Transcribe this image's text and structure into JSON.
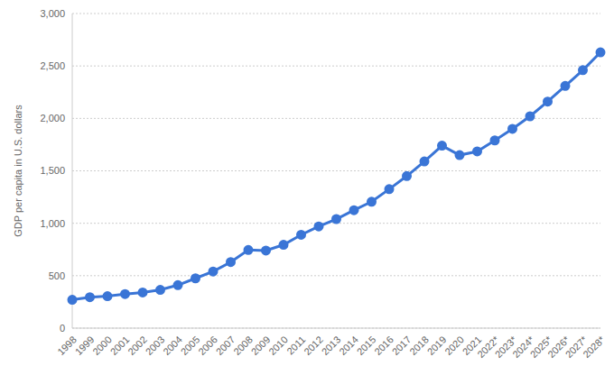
{
  "chart_data": {
    "type": "line",
    "y_label": "GDP per capita in U.S. dollars",
    "categories": [
      "1998",
      "1999",
      "2000",
      "2001",
      "2002",
      "2003",
      "2004",
      "2005",
      "2006",
      "2007",
      "2008",
      "2009",
      "2010",
      "2011",
      "2012",
      "2013",
      "2014",
      "2015",
      "2016",
      "2017",
      "2018",
      "2019",
      "2020",
      "2021",
      "2022*",
      "2023*",
      "2024*",
      "2025*",
      "2026*",
      "2027*",
      "2028*"
    ],
    "values": [
      270,
      295,
      305,
      325,
      340,
      365,
      410,
      475,
      540,
      630,
      745,
      740,
      795,
      890,
      970,
      1040,
      1125,
      1205,
      1325,
      1450,
      1590,
      1740,
      1650,
      1685,
      1790,
      1900,
      2020,
      2160,
      2310,
      2460,
      2630
    ],
    "color": "#3a75d6",
    "marker": "circle",
    "ylim": [
      0,
      3000
    ],
    "yticks": [
      0,
      500,
      {
        "value": 1000,
        "label": "1,000"
      },
      {
        "value": 1500,
        "label": "1,500"
      },
      {
        "value": 2000,
        "label": "2,000"
      },
      {
        "value": 2500,
        "label": "2,500"
      },
      {
        "value": 3000,
        "label": "3,000"
      }
    ],
    "grid": true
  }
}
